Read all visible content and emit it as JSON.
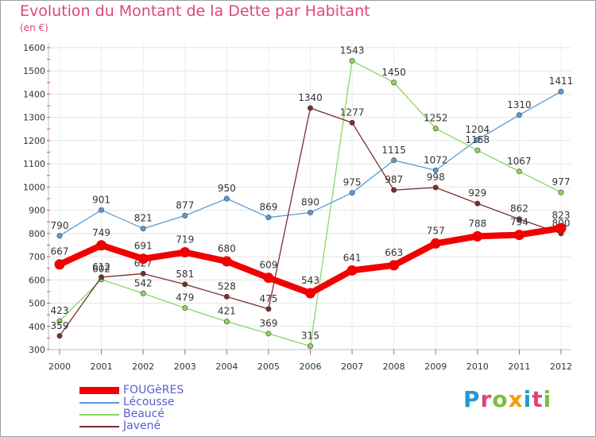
{
  "title": "Evolution du Montant de la Dette par Habitant",
  "subtitle": "(en €)",
  "brand_letters": [
    {
      "ch": "P",
      "color": "#1f9ad6"
    },
    {
      "ch": "r",
      "color": "#e0457a"
    },
    {
      "ch": "o",
      "color": "#7cbf3b"
    },
    {
      "ch": "x",
      "color": "#f39c12"
    },
    {
      "ch": "i",
      "color": "#1f9ad6"
    },
    {
      "ch": "t",
      "color": "#e0457a"
    },
    {
      "ch": "i",
      "color": "#7cbf3b"
    }
  ],
  "chart_data": {
    "type": "line",
    "title": "Evolution du Montant de la Dette par Habitant",
    "subtitle": "(en €)",
    "xlabel": "",
    "ylabel": "",
    "ylim": [
      300,
      1600
    ],
    "y_ticks": [
      "300",
      "400",
      "500",
      "600",
      "700",
      "800",
      "900",
      "1000",
      "1100",
      "1200",
      "1300",
      "1400",
      "1500",
      "1600"
    ],
    "grid": true,
    "legend_position": "bottom-left",
    "categories": [
      "2000",
      "2001",
      "2002",
      "2003",
      "2004",
      "2005",
      "2006",
      "2007",
      "2008",
      "2009",
      "2010",
      "2011",
      "2012"
    ],
    "series": [
      {
        "name": "Lécousse",
        "color": "#5b9bd5",
        "values": [
          790,
          901,
          821,
          877,
          950,
          869,
          890,
          975,
          1115,
          1072,
          1204,
          1310,
          1411
        ],
        "labels": [
          "790",
          "901",
          "821",
          "877",
          "950",
          "869",
          "890",
          "975",
          "1115",
          "1072",
          "1204",
          "1310",
          "1411"
        ]
      },
      {
        "name": "Beaucé",
        "color": "#8ed45e",
        "values": [
          423,
          602,
          542,
          479,
          421,
          369,
          315,
          1543,
          1450,
          1252,
          1158,
          1067,
          977
        ],
        "labels": [
          "423",
          "602",
          "542",
          "479",
          "421",
          "369",
          "315",
          "1543",
          "1450",
          "1252",
          "1158",
          "1067",
          "977"
        ]
      },
      {
        "name": "Javené",
        "color": "#7b2d2d",
        "values": [
          359,
          612,
          627,
          581,
          528,
          475,
          1340,
          1277,
          987,
          998,
          929,
          862,
          800
        ],
        "labels": [
          "359",
          "612",
          "627",
          "581",
          "528",
          "475",
          "1340",
          "1277",
          "987",
          "998",
          "929",
          "862",
          "800"
        ]
      },
      {
        "name": "FOUGèRES",
        "color": "#f00000",
        "values": [
          667,
          749,
          691,
          719,
          680,
          609,
          543,
          641,
          663,
          757,
          788,
          794,
          823
        ],
        "labels": [
          "667",
          "749",
          "691",
          "719",
          "680",
          "609",
          "543",
          "641",
          "663",
          "757",
          "788",
          "794",
          "823"
        ]
      }
    ]
  }
}
